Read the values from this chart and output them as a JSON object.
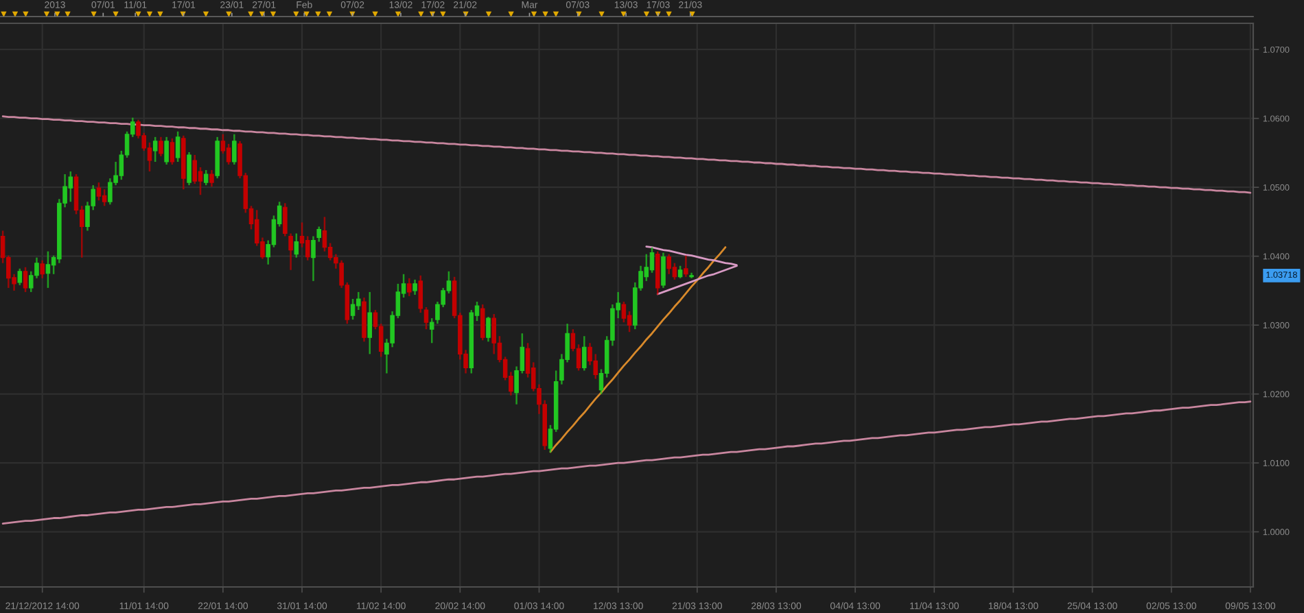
{
  "chart_data": {
    "type": "candlestick",
    "categories": [
      null,
      null,
      null,
      null,
      null,
      null,
      null,
      "21/12/2012 14:00",
      null,
      null,
      null,
      null,
      null,
      null,
      null,
      null,
      null,
      null,
      null,
      null,
      null,
      null,
      null,
      null,
      null,
      "11/01 14:00",
      null,
      null,
      null,
      null,
      null,
      null,
      null,
      null,
      null,
      null,
      null,
      null,
      null,
      "22/01 14:00",
      null,
      null,
      null,
      null,
      null,
      null,
      null,
      null,
      null,
      null,
      null,
      null,
      null,
      "31/01 14:00",
      null,
      null,
      null,
      null,
      null,
      null,
      null,
      null,
      null,
      null,
      null,
      null,
      null,
      "11/02 14:00",
      null,
      null,
      null,
      null,
      null,
      null,
      null,
      null,
      null,
      null,
      null,
      null,
      null,
      "20/02 14:00",
      null,
      null,
      null,
      null,
      null,
      null,
      null,
      null,
      null,
      null,
      null,
      null,
      null,
      "01/03 14:00",
      null,
      null,
      null,
      null,
      null,
      null,
      null,
      null,
      null,
      null,
      null,
      null,
      null,
      "12/03 13:00",
      null,
      null,
      null,
      null,
      null,
      null,
      null,
      null,
      null,
      null,
      null,
      null,
      null,
      "21/03 13:00",
      null,
      null,
      null,
      null,
      null,
      null,
      null,
      null,
      null,
      null,
      null,
      null,
      null,
      "28/03 13:00",
      null,
      null,
      null,
      null,
      null,
      null,
      null,
      null,
      null,
      null,
      null,
      null,
      null,
      "04/04 13:00",
      null,
      null,
      null,
      null,
      null,
      null,
      null,
      null,
      null,
      null,
      null,
      null,
      null,
      "11/04 13:00",
      null,
      null,
      null,
      null,
      null,
      null,
      null,
      null,
      null,
      null,
      null,
      null,
      null,
      "18/04 13:00",
      null,
      null,
      null,
      null,
      null,
      null,
      null,
      null,
      null,
      null,
      null,
      null,
      null,
      "25/04 13:00",
      null,
      null,
      null,
      null,
      null,
      null,
      null,
      null,
      null,
      null,
      null,
      null,
      null,
      "02/05 13:00",
      null,
      null,
      null,
      null,
      null,
      null,
      null,
      null,
      null,
      null,
      null,
      null,
      null,
      "09/05 13:00"
    ],
    "ohlc": [
      [
        1.0429,
        1.0437,
        1.039,
        1.0398
      ],
      [
        1.0398,
        1.0401,
        1.0354,
        1.0368
      ],
      [
        1.0369,
        1.0374,
        1.035,
        1.036
      ],
      [
        1.0362,
        1.0382,
        1.0358,
        1.0378
      ],
      [
        1.0378,
        1.0384,
        1.0348,
        1.0354
      ],
      [
        1.0354,
        1.0378,
        1.0348,
        1.0372
      ],
      [
        1.0372,
        1.0398,
        1.0368,
        1.039
      ],
      [
        1.0389,
        1.0394,
        1.0368,
        1.0374
      ],
      [
        1.0375,
        1.0407,
        1.0354,
        1.0388
      ],
      [
        1.0387,
        1.0401,
        1.0374,
        1.0398
      ],
      [
        1.0396,
        1.0483,
        1.039,
        1.0477
      ],
      [
        1.0477,
        1.0519,
        1.0471,
        1.0501
      ],
      [
        1.0499,
        1.0523,
        1.0479,
        1.0515
      ],
      [
        1.0515,
        1.0519,
        1.0461,
        1.0467
      ],
      [
        1.0467,
        1.0473,
        1.0398,
        1.0443
      ],
      [
        1.0443,
        1.0479,
        1.0437,
        1.0473
      ],
      [
        1.0473,
        1.0503,
        1.0467,
        1.0497
      ],
      [
        1.0499,
        1.0507,
        1.0481,
        1.0487
      ],
      [
        1.0488,
        1.0497,
        1.0473,
        1.0479
      ],
      [
        1.0479,
        1.0513,
        1.0475,
        1.0507
      ],
      [
        1.0507,
        1.0537,
        1.0503,
        1.0517
      ],
      [
        1.0517,
        1.0553,
        1.0511,
        1.0547
      ],
      [
        1.0547,
        1.0581,
        1.0543,
        1.0577
      ],
      [
        1.0577,
        1.0601,
        1.0573,
        1.0595
      ],
      [
        1.0595,
        1.0598,
        1.0571,
        1.0575
      ],
      [
        1.0575,
        1.0579,
        1.0553,
        1.0557
      ],
      [
        1.0557,
        1.0565,
        1.0523,
        1.0539
      ],
      [
        1.0553,
        1.0573,
        1.0537,
        1.0567
      ],
      [
        1.0567,
        1.0573,
        1.0545,
        1.0549
      ],
      [
        1.0537,
        1.0573,
        1.0533,
        1.0567
      ],
      [
        1.0565,
        1.0571,
        1.0533,
        1.0537
      ],
      [
        1.0543,
        1.0581,
        1.0537,
        1.0573
      ],
      [
        1.0571,
        1.0575,
        1.0497,
        1.0513
      ],
      [
        1.0507,
        1.0551,
        1.0503,
        1.0547
      ],
      [
        1.0539,
        1.0547,
        1.0505,
        1.0509
      ],
      [
        1.0523,
        1.0529,
        1.0489,
        1.0509
      ],
      [
        1.0507,
        1.0525,
        1.0503,
        1.0519
      ],
      [
        1.0519,
        1.0525,
        1.0501,
        1.0507
      ],
      [
        1.0517,
        1.0573,
        1.0513,
        1.0567
      ],
      [
        1.0567,
        1.0577,
        1.0549,
        1.0553
      ],
      [
        1.0557,
        1.0563,
        1.0533,
        1.0537
      ],
      [
        1.0537,
        1.0577,
        1.0533,
        1.0567
      ],
      [
        1.0563,
        1.0567,
        1.0513,
        1.0517
      ],
      [
        1.0517,
        1.0521,
        1.0463,
        1.0469
      ],
      [
        1.0469,
        1.0473,
        1.0439,
        1.0447
      ],
      [
        1.0453,
        1.0467,
        1.0415,
        1.0419
      ],
      [
        1.0421,
        1.0427,
        1.0396,
        1.0399
      ],
      [
        1.0399,
        1.0423,
        1.0388,
        1.0417
      ],
      [
        1.0417,
        1.0459,
        1.0413,
        1.0453
      ],
      [
        1.0447,
        1.0479,
        1.0443,
        1.0473
      ],
      [
        1.0471,
        1.0477,
        1.0429,
        1.0433
      ],
      [
        1.0429,
        1.0433,
        1.038,
        1.0409
      ],
      [
        1.0403,
        1.0433,
        1.0398,
        1.0421
      ],
      [
        1.0429,
        1.0449,
        1.0413,
        1.0419
      ],
      [
        1.0423,
        1.0429,
        1.0394,
        1.0399
      ],
      [
        1.0398,
        1.0429,
        1.0364,
        1.0423
      ],
      [
        1.0427,
        1.0443,
        1.0421,
        1.0439
      ],
      [
        1.0437,
        1.0457,
        1.0407,
        1.0413
      ],
      [
        1.0413,
        1.0419,
        1.0394,
        1.0398
      ],
      [
        1.0398,
        1.0403,
        1.0382,
        1.039
      ],
      [
        1.039,
        1.0394,
        1.0354,
        1.0358
      ],
      [
        1.0358,
        1.0362,
        1.0302,
        1.0308
      ],
      [
        1.0314,
        1.0338,
        1.0308,
        1.033
      ],
      [
        1.0328,
        1.0348,
        1.0322,
        1.0338
      ],
      [
        1.0334,
        1.034,
        1.0276,
        1.0282
      ],
      [
        1.0282,
        1.0348,
        1.0258,
        1.0318
      ],
      [
        1.0318,
        1.0322,
        1.0294,
        1.0298
      ],
      [
        1.0298,
        1.0302,
        1.0254,
        1.0262
      ],
      [
        1.0258,
        1.028,
        1.023,
        1.0274
      ],
      [
        1.0274,
        1.032,
        1.0268,
        1.0314
      ],
      [
        1.0314,
        1.036,
        1.031,
        1.0348
      ],
      [
        1.0346,
        1.0374,
        1.034,
        1.036
      ],
      [
        1.036,
        1.0368,
        1.0342,
        1.0348
      ],
      [
        1.035,
        1.0366,
        1.0344,
        1.036
      ],
      [
        1.0364,
        1.0372,
        1.0318,
        1.0324
      ],
      [
        1.0322,
        1.0326,
        1.0294,
        1.0304
      ],
      [
        1.0294,
        1.031,
        1.0274,
        1.0304
      ],
      [
        1.0308,
        1.0334,
        1.0302,
        1.033
      ],
      [
        1.033,
        1.0354,
        1.0326,
        1.035
      ],
      [
        1.035,
        1.0378,
        1.0346,
        1.0364
      ],
      [
        1.0364,
        1.037,
        1.031,
        1.0314
      ],
      [
        1.0314,
        1.0318,
        1.025,
        1.0258
      ],
      [
        1.0258,
        1.0264,
        1.023,
        1.0238
      ],
      [
        1.0238,
        1.0322,
        1.023,
        1.0318
      ],
      [
        1.0314,
        1.0334,
        1.0306,
        1.0328
      ],
      [
        1.0324,
        1.033,
        1.0278,
        1.0282
      ],
      [
        1.0282,
        1.0312,
        1.0276,
        1.031
      ],
      [
        1.031,
        1.0316,
        1.0258,
        1.0274
      ],
      [
        1.0274,
        1.0284,
        1.0246,
        1.025
      ],
      [
        1.025,
        1.0254,
        1.022,
        1.0224
      ],
      [
        1.0226,
        1.0232,
        1.0198,
        1.0204
      ],
      [
        1.0202,
        1.024,
        1.0185,
        1.0234
      ],
      [
        1.0234,
        1.0288,
        1.023,
        1.0268
      ],
      [
        1.0266,
        1.0274,
        1.0224,
        1.023
      ],
      [
        1.0238,
        1.0246,
        1.0204,
        1.0208
      ],
      [
        1.0208,
        1.0214,
        1.0171,
        1.0185
      ],
      [
        1.0185,
        1.0191,
        1.0119,
        1.0125
      ],
      [
        1.0121,
        1.0155,
        1.0115,
        1.0149
      ],
      [
        1.0149,
        1.0234,
        1.0145,
        1.0218
      ],
      [
        1.022,
        1.0258,
        1.0214,
        1.025
      ],
      [
        1.025,
        1.0302,
        1.0246,
        1.0288
      ],
      [
        1.0288,
        1.0294,
        1.0262,
        1.0266
      ],
      [
        1.0266,
        1.0272,
        1.0234,
        1.0238
      ],
      [
        1.0238,
        1.0284,
        1.0234,
        1.0268
      ],
      [
        1.0268,
        1.0274,
        1.0242,
        1.0248
      ],
      [
        1.0248,
        1.0258,
        1.0222,
        1.0228
      ],
      [
        1.0206,
        1.0236,
        1.02,
        1.023
      ],
      [
        1.023,
        1.0284,
        1.0224,
        1.0278
      ],
      [
        1.0278,
        1.033,
        1.027,
        1.0324
      ],
      [
        1.0322,
        1.0348,
        1.031,
        1.0332
      ],
      [
        1.033,
        1.0334,
        1.0304,
        1.031
      ],
      [
        1.0314,
        1.032,
        1.029,
        1.03
      ],
      [
        1.03,
        1.0362,
        1.0294,
        1.0354
      ],
      [
        1.0354,
        1.0386,
        1.035,
        1.0378
      ],
      [
        1.037,
        1.0403,
        1.0364,
        1.0384
      ],
      [
        1.038,
        1.0413,
        1.0376,
        1.0405
      ],
      [
        1.0403,
        1.0407,
        1.0344,
        1.0354
      ],
      [
        1.0358,
        1.0405,
        1.0354,
        1.0399
      ],
      [
        1.0399,
        1.0403,
        1.0374,
        1.0382
      ],
      [
        1.0384,
        1.039,
        1.0366,
        1.037
      ],
      [
        1.037,
        1.0386,
        1.0368,
        1.038
      ],
      [
        1.0382,
        1.0401,
        1.037,
        1.0374
      ],
      [
        1.037,
        1.0376,
        1.0368,
        1.0372
      ],
      null,
      null,
      null,
      null,
      null,
      null,
      null,
      null,
      null,
      null,
      null,
      null,
      null,
      null,
      null,
      null,
      null,
      null,
      null,
      null,
      null,
      null,
      null,
      null,
      null,
      null,
      null,
      null,
      null,
      null,
      null,
      null,
      null,
      null,
      null,
      null,
      null,
      null,
      null,
      null,
      null,
      null,
      null,
      null,
      null,
      null,
      null,
      null,
      null,
      null,
      null,
      null,
      null,
      null,
      null,
      null,
      null,
      null,
      null,
      null,
      null,
      null,
      null,
      null,
      null,
      null,
      null,
      null,
      null,
      null,
      null,
      null,
      null,
      null,
      null,
      null,
      null,
      null,
      null,
      null,
      null,
      null,
      null,
      null,
      null,
      null,
      null,
      null,
      null,
      null,
      null,
      null,
      null,
      null,
      null,
      null,
      null,
      null,
      null
    ],
    "colors": [
      "#c40000",
      "#c40000",
      "#c40000",
      "#22c722",
      "#c40000",
      "#22c722",
      "#22c722",
      "#c40000",
      "#22c722",
      "#22c722",
      "#22c722",
      "#22c722",
      "#22c722",
      "#c40000",
      "#c40000",
      "#22c722",
      "#22c722",
      "#c40000",
      "#c40000",
      "#22c722",
      "#22c722",
      "#22c722",
      "#22c722",
      "#22c722",
      "#c40000",
      "#c40000",
      "#c40000",
      "#22c722",
      "#c40000",
      "#22c722",
      "#c40000",
      "#22c722",
      "#c40000",
      "#22c722",
      "#c40000",
      "#c40000",
      "#22c722",
      "#c40000",
      "#22c722",
      "#c40000",
      "#c40000",
      "#22c722",
      "#c40000",
      "#c40000",
      "#c40000",
      "#c40000",
      "#c40000",
      "#22c722",
      "#22c722",
      "#22c722",
      "#c40000",
      "#c40000",
      "#22c722",
      "#c40000",
      "#c40000",
      "#22c722",
      "#22c722",
      "#c40000",
      "#c40000",
      "#c40000",
      "#c40000",
      "#c40000",
      "#22c722",
      "#22c722",
      "#c40000",
      "#22c722",
      "#c40000",
      "#c40000",
      "#22c722",
      "#22c722",
      "#22c722",
      "#22c722",
      "#c40000",
      "#22c722",
      "#c40000",
      "#c40000",
      "#22c722",
      "#22c722",
      "#22c722",
      "#22c722",
      "#c40000",
      "#c40000",
      "#c40000",
      "#22c722",
      "#22c722",
      "#c40000",
      "#22c722",
      "#c40000",
      "#c40000",
      "#c40000",
      "#c40000",
      "#22c722",
      "#22c722",
      "#c40000",
      "#c40000",
      "#c40000",
      "#c40000",
      "#22c722",
      "#22c722",
      "#22c722",
      "#22c722",
      "#c40000",
      "#c40000",
      "#22c722",
      "#c40000",
      "#c40000",
      "#22c722",
      "#22c722",
      "#22c722",
      "#22c722",
      "#c40000",
      "#c40000",
      "#22c722",
      "#22c722",
      "#22c722",
      "#22c722",
      "#c40000",
      "#22c722",
      "#c40000",
      "#c40000",
      "#22c722",
      "#c40000",
      "#22c722",
      null,
      null,
      null,
      null,
      null,
      null,
      null,
      null,
      null,
      null,
      null,
      null,
      null,
      null,
      null,
      null,
      null,
      null,
      null,
      null,
      null,
      null,
      null,
      null,
      null,
      null,
      null,
      null,
      null,
      null,
      null,
      null,
      null,
      null,
      null,
      null,
      null,
      null,
      null,
      null,
      null,
      null,
      null,
      null,
      null,
      null,
      null,
      null,
      null,
      null,
      null,
      null,
      null,
      null,
      null,
      null,
      null,
      null,
      null,
      null,
      null,
      null,
      null,
      null,
      null,
      null,
      null,
      null,
      null,
      null,
      null,
      null,
      null,
      null,
      null,
      null,
      null,
      null,
      null,
      null,
      null,
      null,
      null,
      null,
      null,
      null,
      null,
      null,
      null,
      null,
      null,
      null,
      null,
      null,
      null,
      null,
      null,
      null,
      null
    ],
    "series": [
      {
        "type": "line",
        "color": "#c9869f",
        "values": [
          1.0603,
          1.0602,
          1.0602,
          1.0601,
          1.0601,
          1.06,
          1.06,
          1.0599,
          1.0599,
          1.0598,
          1.0598,
          1.0597,
          1.0597,
          1.0596,
          1.0596,
          1.0595,
          1.0595,
          1.0594,
          1.0594,
          1.0593,
          1.0593,
          1.0592,
          1.0592,
          1.0591,
          1.0591,
          1.059,
          1.059,
          1.0589,
          1.0589,
          1.0588,
          1.0588,
          1.0587,
          1.0587,
          1.0586,
          1.0586,
          1.0585,
          1.0585,
          1.0584,
          1.0584,
          1.0583,
          1.0583,
          1.0582,
          1.0582,
          1.0581,
          1.0581,
          1.058,
          1.058,
          1.0579,
          1.0579,
          1.0578,
          1.0578,
          1.0577,
          1.0577,
          1.0576,
          1.0576,
          1.0575,
          1.0575,
          1.0574,
          1.0574,
          1.0573,
          1.0573,
          1.0572,
          1.0572,
          1.0571,
          1.0571,
          1.057,
          1.057,
          1.0569,
          1.0569,
          1.0568,
          1.0568,
          1.0567,
          1.0567,
          1.0566,
          1.0566,
          1.0565,
          1.0565,
          1.0564,
          1.0564,
          1.0563,
          1.0563,
          1.0562,
          1.0562,
          1.0561,
          1.0561,
          1.056,
          1.056,
          1.0559,
          1.0559,
          1.0558,
          1.0558,
          1.0557,
          1.0557,
          1.0556,
          1.0556,
          1.0555,
          1.0555,
          1.0554,
          1.0554,
          1.0553,
          1.0553,
          1.0552,
          1.0552,
          1.0551,
          1.0551,
          1.055,
          1.055,
          1.0549,
          1.0549,
          1.0548,
          1.0548,
          1.0547,
          1.0547,
          1.0546,
          1.0546,
          1.0545,
          1.0545,
          1.0544,
          1.0544,
          1.0543,
          1.0543,
          1.0542,
          1.0542,
          1.0541,
          1.0541,
          1.054,
          1.054,
          1.0539,
          1.0539,
          1.0538,
          1.0538,
          1.0537,
          1.0537,
          1.0536,
          1.0536,
          1.0535,
          1.0535,
          1.0534,
          1.0534,
          1.0533,
          1.0533,
          1.0532,
          1.0532,
          1.0531,
          1.0531,
          1.053,
          1.053,
          1.0529,
          1.0529,
          1.0528,
          1.0528,
          1.0527,
          1.0527,
          1.0526,
          1.0526,
          1.0525,
          1.0525,
          1.0524,
          1.0524,
          1.0523,
          1.0523,
          1.0522,
          1.0522,
          1.0521,
          1.0521,
          1.052,
          1.052,
          1.0519,
          1.0519,
          1.0518,
          1.0518,
          1.0517,
          1.0517,
          1.0516,
          1.0516,
          1.0515,
          1.0515,
          1.0514,
          1.0514,
          1.0513,
          1.0513,
          1.0512,
          1.0512,
          1.0511,
          1.0511,
          1.051,
          1.051,
          1.0509,
          1.0509,
          1.0508,
          1.0508,
          1.0507,
          1.0507,
          1.0506,
          1.0506,
          1.0505,
          1.0505,
          1.0504,
          1.0504,
          1.0503,
          1.0503,
          1.0502,
          1.0502,
          1.0501,
          1.0501,
          1.05,
          1.05,
          1.0499,
          1.0499,
          1.0498,
          1.0498,
          1.0497,
          1.0497,
          1.0496,
          1.0496,
          1.0495,
          1.0495,
          1.0494,
          1.0494,
          1.0493,
          1.0493,
          1.0492
        ]
      },
      {
        "type": "line",
        "color": "#c9869f",
        "values": [
          1.0012,
          1.0013,
          1.0014,
          1.0015,
          1.0016,
          1.0016,
          1.0017,
          1.0018,
          1.0019,
          1.002,
          1.002,
          1.0021,
          1.0022,
          1.0023,
          1.0024,
          1.0024,
          1.0025,
          1.0026,
          1.0027,
          1.0028,
          1.0028,
          1.0029,
          1.003,
          1.0031,
          1.0032,
          1.0032,
          1.0033,
          1.0034,
          1.0035,
          1.0036,
          1.0036,
          1.0037,
          1.0038,
          1.0039,
          1.004,
          1.004,
          1.0041,
          1.0042,
          1.0043,
          1.0044,
          1.0044,
          1.0045,
          1.0046,
          1.0047,
          1.0048,
          1.0048,
          1.0049,
          1.005,
          1.0051,
          1.0052,
          1.0052,
          1.0053,
          1.0054,
          1.0055,
          1.0056,
          1.0056,
          1.0057,
          1.0058,
          1.0059,
          1.006,
          1.006,
          1.0061,
          1.0062,
          1.0063,
          1.0064,
          1.0064,
          1.0065,
          1.0066,
          1.0067,
          1.0068,
          1.0068,
          1.0069,
          1.007,
          1.0071,
          1.0072,
          1.0072,
          1.0073,
          1.0074,
          1.0075,
          1.0076,
          1.0076,
          1.0077,
          1.0078,
          1.0079,
          1.008,
          1.008,
          1.0081,
          1.0082,
          1.0083,
          1.0084,
          1.0084,
          1.0085,
          1.0086,
          1.0087,
          1.0088,
          1.0088,
          1.0089,
          1.009,
          1.0091,
          1.0092,
          1.0092,
          1.0093,
          1.0094,
          1.0095,
          1.0096,
          1.0096,
          1.0097,
          1.0098,
          1.0099,
          1.01,
          1.01,
          1.0101,
          1.0102,
          1.0103,
          1.0104,
          1.0104,
          1.0105,
          1.0106,
          1.0107,
          1.0108,
          1.0108,
          1.0109,
          1.011,
          1.0111,
          1.0112,
          1.0112,
          1.0113,
          1.0114,
          1.0115,
          1.0116,
          1.0116,
          1.0117,
          1.0118,
          1.0119,
          1.012,
          1.012,
          1.0121,
          1.0122,
          1.0123,
          1.0124,
          1.0124,
          1.0125,
          1.0126,
          1.0127,
          1.0128,
          1.0128,
          1.0129,
          1.013,
          1.0131,
          1.0132,
          1.0132,
          1.0133,
          1.0134,
          1.0135,
          1.0136,
          1.0136,
          1.0137,
          1.0138,
          1.0139,
          1.014,
          1.014,
          1.0141,
          1.0142,
          1.0143,
          1.0144,
          1.0144,
          1.0145,
          1.0146,
          1.0147,
          1.0148,
          1.0148,
          1.0149,
          1.015,
          1.0151,
          1.0152,
          1.0152,
          1.0153,
          1.0154,
          1.0155,
          1.0156,
          1.0156,
          1.0157,
          1.0158,
          1.0159,
          1.016,
          1.016,
          1.0161,
          1.0162,
          1.0163,
          1.0164,
          1.0164,
          1.0165,
          1.0166,
          1.0167,
          1.0168,
          1.0168,
          1.0169,
          1.017,
          1.0171,
          1.0172,
          1.0172,
          1.0173,
          1.0174,
          1.0175,
          1.0176,
          1.0176,
          1.0177,
          1.0178,
          1.0179,
          1.018,
          1.018,
          1.0181,
          1.0182,
          1.0183,
          1.0184,
          1.0184,
          1.0185,
          1.0186,
          1.0187,
          1.0188,
          1.0188,
          1.0189
        ]
      },
      {
        "type": "line",
        "color": "#d98a2b",
        "values": [
          null,
          null,
          null,
          null,
          null,
          null,
          null,
          null,
          null,
          null,
          null,
          null,
          null,
          null,
          null,
          null,
          null,
          null,
          null,
          null,
          null,
          null,
          null,
          null,
          null,
          null,
          null,
          null,
          null,
          null,
          null,
          null,
          null,
          null,
          null,
          null,
          null,
          null,
          null,
          null,
          null,
          null,
          null,
          null,
          null,
          null,
          null,
          null,
          null,
          null,
          null,
          null,
          null,
          null,
          null,
          null,
          null,
          null,
          null,
          null,
          null,
          null,
          null,
          null,
          null,
          null,
          null,
          null,
          null,
          null,
          null,
          null,
          null,
          null,
          null,
          null,
          null,
          null,
          null,
          null,
          null,
          null,
          null,
          null,
          null,
          null,
          null,
          null,
          null,
          null,
          null,
          null,
          null,
          null,
          null,
          null,
          null,
          1.0116,
          1.0126,
          1.0135,
          1.0145,
          1.0154,
          1.0164,
          1.0173,
          1.0183,
          1.0193,
          1.0202,
          1.0212,
          1.0221,
          1.0231,
          1.0241,
          1.025,
          1.026,
          1.0269,
          1.0279,
          1.0288,
          1.0298,
          1.0308,
          1.0317,
          1.0327,
          1.0336,
          1.0346,
          1.0356,
          1.0365,
          1.0375,
          1.0384,
          1.0394,
          1.0403,
          1.0413,
          null,
          null,
          null,
          null,
          null,
          null,
          null,
          null,
          null,
          null,
          null,
          null,
          null,
          null,
          null,
          null,
          null,
          null,
          null,
          null,
          null,
          null,
          null,
          null,
          null,
          null,
          null,
          null,
          null,
          null,
          null,
          null,
          null,
          null,
          null,
          null,
          null,
          null,
          null,
          null,
          null,
          null,
          null,
          null,
          null,
          null,
          null,
          null,
          null,
          null,
          null,
          null,
          null,
          null,
          null,
          null,
          null,
          null,
          null,
          null,
          null,
          null,
          null,
          null,
          null,
          null,
          null,
          null,
          null,
          null,
          null,
          null,
          null,
          null,
          null,
          null,
          null,
          null,
          null,
          null,
          null,
          null,
          null,
          null,
          null,
          null,
          null,
          null,
          null,
          null,
          null,
          null,
          null
        ]
      },
      {
        "type": "line",
        "color": "#d89ac4",
        "values": [
          null,
          null,
          null,
          null,
          null,
          null,
          null,
          null,
          null,
          null,
          null,
          null,
          null,
          null,
          null,
          null,
          null,
          null,
          null,
          null,
          null,
          null,
          null,
          null,
          null,
          null,
          null,
          null,
          null,
          null,
          null,
          null,
          null,
          null,
          null,
          null,
          null,
          null,
          null,
          null,
          null,
          null,
          null,
          null,
          null,
          null,
          null,
          null,
          null,
          null,
          null,
          null,
          null,
          null,
          null,
          null,
          null,
          null,
          null,
          null,
          null,
          null,
          null,
          null,
          null,
          null,
          null,
          null,
          null,
          null,
          null,
          null,
          null,
          null,
          null,
          null,
          null,
          null,
          null,
          null,
          null,
          null,
          null,
          null,
          null,
          null,
          null,
          null,
          null,
          null,
          null,
          null,
          null,
          null,
          null,
          null,
          null,
          null,
          null,
          null,
          null,
          null,
          null,
          null,
          null,
          null,
          null,
          null,
          null,
          null,
          null,
          null,
          null,
          null,
          1.0414,
          1.0413,
          1.0411,
          1.0409,
          1.0408,
          1.0406,
          1.0404,
          1.0402,
          1.0401,
          1.0399,
          1.0397,
          1.0395,
          1.0394,
          1.0392,
          1.039,
          1.0389,
          1.0387,
          null,
          null,
          null,
          null,
          null,
          null,
          null,
          null,
          null,
          null,
          null,
          null,
          null,
          null,
          null,
          null,
          null,
          null,
          null,
          null,
          null,
          null,
          null,
          null,
          null,
          null,
          null,
          null,
          null,
          null,
          null,
          null,
          null,
          null,
          null,
          null,
          null,
          null,
          null,
          null,
          null,
          null,
          null,
          null,
          null,
          null,
          null,
          null,
          null,
          null,
          null,
          null,
          null,
          null,
          null,
          null,
          null,
          null,
          null,
          null,
          null,
          null,
          null,
          null,
          null,
          null,
          null,
          null,
          null,
          null,
          null,
          null,
          null,
          null,
          null,
          null,
          null,
          null,
          null,
          null,
          null,
          null,
          null,
          null,
          null,
          null,
          null,
          null,
          null,
          null,
          null
        ]
      },
      {
        "type": "line",
        "color": "#d89ac4",
        "values": [
          null,
          null,
          null,
          null,
          null,
          null,
          null,
          null,
          null,
          null,
          null,
          null,
          null,
          null,
          null,
          null,
          null,
          null,
          null,
          null,
          null,
          null,
          null,
          null,
          null,
          null,
          null,
          null,
          null,
          null,
          null,
          null,
          null,
          null,
          null,
          null,
          null,
          null,
          null,
          null,
          null,
          null,
          null,
          null,
          null,
          null,
          null,
          null,
          null,
          null,
          null,
          null,
          null,
          null,
          null,
          null,
          null,
          null,
          null,
          null,
          null,
          null,
          null,
          null,
          null,
          null,
          null,
          null,
          null,
          null,
          null,
          null,
          null,
          null,
          null,
          null,
          null,
          null,
          null,
          null,
          null,
          null,
          null,
          null,
          null,
          null,
          null,
          null,
          null,
          null,
          null,
          null,
          null,
          null,
          null,
          null,
          null,
          null,
          null,
          null,
          null,
          null,
          null,
          null,
          null,
          null,
          null,
          null,
          null,
          null,
          null,
          null,
          null,
          null,
          null,
          null,
          1.0345,
          1.0348,
          1.0351,
          1.0354,
          1.0357,
          1.036,
          1.0363,
          1.0366,
          1.0369,
          1.0372,
          1.0374,
          1.0377,
          1.038,
          1.0383,
          1.0386,
          null,
          null,
          null,
          null,
          null,
          null,
          null,
          null,
          null,
          null,
          null,
          null,
          null,
          null,
          null,
          null,
          null,
          null,
          null,
          null,
          null,
          null,
          null,
          null,
          null,
          null,
          null,
          null,
          null,
          null,
          null,
          null,
          null,
          null,
          null,
          null,
          null,
          null,
          null,
          null,
          null,
          null,
          null,
          null,
          null,
          null,
          null,
          null,
          null,
          null,
          null,
          null,
          null,
          null,
          null,
          null,
          null,
          null,
          null,
          null,
          null,
          null,
          null,
          null,
          null,
          null,
          null,
          null,
          null,
          null,
          null,
          null,
          null,
          null,
          null,
          null,
          null,
          null,
          null,
          null,
          null,
          null,
          null,
          null,
          null,
          null,
          null,
          null,
          null,
          null,
          null
        ]
      }
    ],
    "x2lim": [
      "2012-12-25T04:10",
      "2013-05-29T23:30"
    ],
    "x2ticks": [
      {
        "value": "2013-01-01",
        "label": "2013"
      },
      {
        "value": "2013-01-07",
        "label": "07/01"
      },
      {
        "value": "2013-01-11",
        "label": "11/01"
      },
      {
        "value": "2013-01-17",
        "label": "17/01"
      },
      {
        "value": "2013-01-23",
        "label": "23/01"
      },
      {
        "value": "2013-01-27",
        "label": "27/01"
      },
      {
        "value": "2013-02-01",
        "label": "Feb"
      },
      {
        "value": "2013-02-07",
        "label": "07/02"
      },
      {
        "value": "2013-02-13",
        "label": "13/02"
      },
      {
        "value": "2013-02-17",
        "label": "17/02"
      },
      {
        "value": "2013-02-21",
        "label": "21/02"
      },
      {
        "value": "2013-03-01",
        "label": "Mar"
      },
      {
        "value": "2013-03-07",
        "label": "07/03"
      },
      {
        "value": "2013-03-13",
        "label": "13/03"
      },
      {
        "value": "2013-03-17",
        "label": "17/03"
      },
      {
        "value": "2013-03-21",
        "label": "21/03"
      }
    ],
    "ylim": [
      0.992,
      1.0738
    ],
    "yticks": [
      {
        "value": 1.0,
        "label": "1.0000"
      },
      {
        "value": 1.01,
        "label": "1.0100"
      },
      {
        "value": 1.02,
        "label": "1.0200"
      },
      {
        "value": 1.03,
        "label": "1.0300"
      },
      {
        "value": 1.04,
        "label": "1.0400"
      },
      {
        "value": 1.05,
        "label": "1.0500"
      },
      {
        "value": 1.06,
        "label": "1.0600"
      },
      {
        "value": 1.07,
        "label": "1.0700"
      }
    ],
    "grid": true,
    "annotations": [
      "1.03718"
    ]
  }
}
